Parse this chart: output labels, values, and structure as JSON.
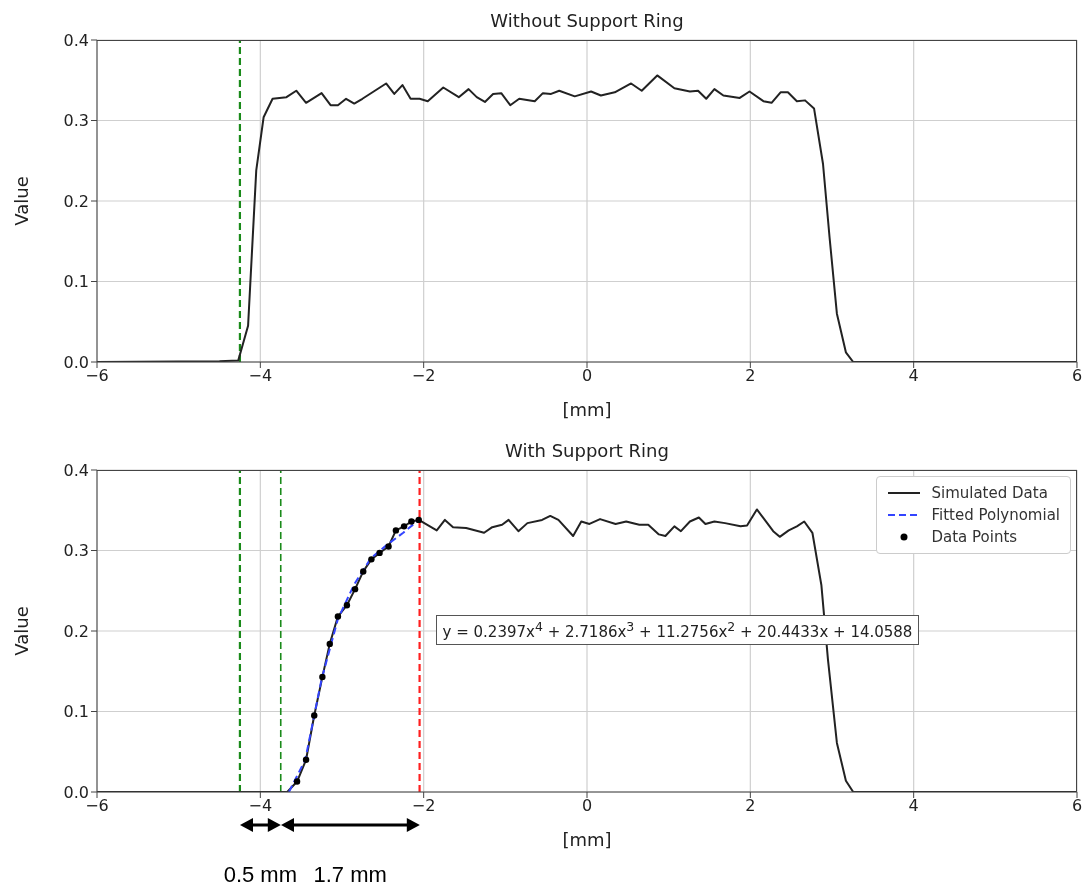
{
  "chart_data": [
    {
      "type": "line",
      "title": "Without Support Ring",
      "xlabel": "[mm]",
      "ylabel": "Value",
      "xlim": [
        -6,
        6
      ],
      "ylim": [
        0,
        0.4
      ],
      "xticks": [
        {
          "value": -6,
          "label": "−6"
        },
        {
          "value": -4,
          "label": "−4"
        },
        {
          "value": -2,
          "label": "−2"
        },
        0,
        2,
        4,
        6
      ],
      "yticks": [
        {
          "value": 0,
          "label": "0.0"
        },
        0.1,
        0.2,
        0.3,
        0.4
      ],
      "grid": true,
      "legend": false,
      "ref_lines": [
        {
          "axis": "x",
          "value": -4.25,
          "color": "#1a8a1a",
          "line_style": "dashed"
        }
      ],
      "series": [
        {
          "type": "line",
          "color": "#222222",
          "line_style": "solid",
          "marker": "none",
          "x": [
            -6,
            -4.5,
            -4.27,
            -4.15,
            -4.05,
            -3.96,
            -3.85,
            -3.68,
            -3.56,
            -3.44,
            -3.25,
            -3.14,
            -3.05,
            -2.95,
            -2.85,
            -2.75,
            -2.46,
            -2.36,
            -2.26,
            -2.16,
            -2.05,
            -1.95,
            -1.76,
            -1.57,
            -1.45,
            -1.35,
            -1.25,
            -1.15,
            -1.05,
            -0.94,
            -0.83,
            -0.64,
            -0.54,
            -0.44,
            -0.34,
            -0.15,
            0.05,
            0.17,
            0.34,
            0.54,
            0.67,
            0.86,
            1.07,
            1.26,
            1.36,
            1.46,
            1.56,
            1.67,
            1.87,
            1.99,
            2.16,
            2.26,
            2.37,
            2.46,
            2.57,
            2.67,
            2.78,
            2.89,
            2.97,
            3.06,
            3.17,
            3.26,
            6
          ],
          "values": [
            0,
            0.001,
            0.002,
            0.045,
            0.238,
            0.304,
            0.327,
            0.329,
            0.337,
            0.322,
            0.334,
            0.319,
            0.319,
            0.327,
            0.321,
            0.327,
            0.346,
            0.333,
            0.344,
            0.327,
            0.327,
            0.324,
            0.341,
            0.329,
            0.339,
            0.329,
            0.323,
            0.333,
            0.334,
            0.319,
            0.327,
            0.324,
            0.334,
            0.333,
            0.337,
            0.33,
            0.336,
            0.331,
            0.335,
            0.346,
            0.337,
            0.356,
            0.34,
            0.336,
            0.337,
            0.327,
            0.339,
            0.331,
            0.328,
            0.336,
            0.324,
            0.322,
            0.335,
            0.335,
            0.324,
            0.325,
            0.315,
            0.246,
            0.155,
            0.06,
            0.012,
            0,
            0
          ]
        }
      ]
    },
    {
      "type": "line",
      "title": "With Support Ring",
      "xlabel": "[mm]",
      "ylabel": "Value",
      "xlim": [
        -6,
        6
      ],
      "ylim": [
        0,
        0.4
      ],
      "xticks": [
        {
          "value": -6,
          "label": "−6"
        },
        {
          "value": -4,
          "label": "−4"
        },
        {
          "value": -2,
          "label": "−2"
        },
        0,
        2,
        4,
        6
      ],
      "yticks": [
        {
          "value": 0,
          "label": "0.0"
        },
        0.1,
        0.2,
        0.3,
        0.4
      ],
      "grid": true,
      "legend": "top right",
      "ref_lines": [
        {
          "axis": "x",
          "value": -4.25,
          "color": "#1a8a1a",
          "line_style": "dashed"
        },
        {
          "axis": "x",
          "value": -3.75,
          "color": "#1a8a1a",
          "line_style": "dashed"
        },
        {
          "axis": "x",
          "value": -2.05,
          "color": "#ff2020",
          "line_style": "dashed"
        }
      ],
      "annotations": [
        "y = 0.2397x$^{4}$ + 2.7186x$^{3}$ + 11.2756x$^{2}$ + 20.4433x + 14.0588",
        "0.5 mm",
        "1.7 mm"
      ],
      "series": [
        {
          "type": "line",
          "name": "Simulated Data",
          "color": "#222222",
          "line_style": "solid",
          "marker": "none",
          "x": [
            -6,
            -3.67,
            -3.55,
            -3.44,
            -3.34,
            -3.24,
            -3.15,
            -3.05,
            -2.94,
            -2.84,
            -2.74,
            -2.64,
            -2.54,
            -2.43,
            -2.34,
            -2.24,
            -2.15,
            -2.06,
            -1.84,
            -1.74,
            -1.64,
            -1.48,
            -1.26,
            -1.16,
            -1.04,
            -0.96,
            -0.84,
            -0.73,
            -0.55,
            -0.45,
            -0.35,
            -0.17,
            -0.07,
            0.03,
            0.16,
            0.35,
            0.48,
            0.64,
            0.75,
            0.88,
            0.96,
            1.07,
            1.15,
            1.26,
            1.37,
            1.45,
            1.56,
            1.69,
            1.88,
            1.96,
            2.08,
            2.17,
            2.28,
            2.36,
            2.47,
            2.57,
            2.66,
            2.76,
            2.87,
            2.95,
            3.06,
            3.17,
            3.26,
            6
          ],
          "values": [
            0,
            0,
            0.013,
            0.04,
            0.095,
            0.143,
            0.184,
            0.218,
            0.232,
            0.252,
            0.274,
            0.289,
            0.297,
            0.305,
            0.325,
            0.33,
            0.336,
            0.338,
            0.325,
            0.338,
            0.329,
            0.328,
            0.322,
            0.329,
            0.332,
            0.338,
            0.324,
            0.334,
            0.338,
            0.343,
            0.338,
            0.318,
            0.336,
            0.333,
            0.339,
            0.333,
            0.336,
            0.332,
            0.332,
            0.32,
            0.318,
            0.33,
            0.324,
            0.336,
            0.341,
            0.333,
            0.336,
            0.334,
            0.33,
            0.331,
            0.351,
            0.339,
            0.324,
            0.317,
            0.325,
            0.33,
            0.336,
            0.322,
            0.257,
            0.165,
            0.061,
            0.014,
            0,
            0
          ]
        },
        {
          "type": "line",
          "name": "Fitted Polynomial",
          "color": "#3344ff",
          "line_style": "dashed",
          "marker": "none",
          "x": [
            -3.65,
            -3.45,
            -3.25,
            -3.05,
            -2.85,
            -2.65,
            -2.45,
            -2.25,
            -2.06
          ],
          "values": [
            0,
            0.04,
            0.14,
            0.215,
            0.258,
            0.29,
            0.307,
            0.322,
            0.338
          ]
        },
        {
          "type": "scatter",
          "name": "Data Points",
          "color": "#000000",
          "marker": "circle",
          "x": [
            -3.55,
            -3.44,
            -3.34,
            -3.24,
            -3.15,
            -3.05,
            -2.94,
            -2.84,
            -2.74,
            -2.64,
            -2.54,
            -2.43,
            -2.34,
            -2.24,
            -2.15,
            -2.06
          ],
          "values": [
            0.013,
            0.04,
            0.095,
            0.143,
            0.184,
            0.218,
            0.232,
            0.252,
            0.274,
            0.289,
            0.297,
            0.305,
            0.325,
            0.33,
            0.336,
            0.338
          ]
        }
      ]
    }
  ]
}
